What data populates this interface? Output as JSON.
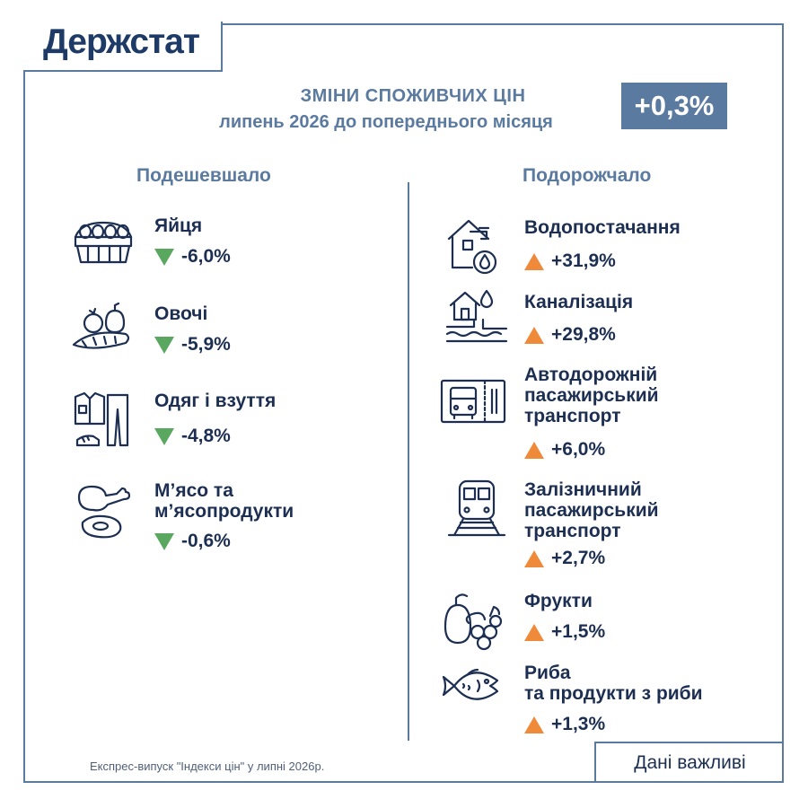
{
  "logo": "Держстат",
  "header": {
    "title": "ЗМІНИ СПОЖИВЧИХ ЦІН",
    "subtitle": "липень 2026 до попереднього місяця",
    "total_change": "+0,3%"
  },
  "columns": {
    "cheaper": "Подешевшало",
    "pricier": "Подорожчало"
  },
  "cheaper_items": [
    {
      "icon": "egg-carton-icon",
      "name": "Яйця",
      "value": "-6,0%"
    },
    {
      "icon": "vegetables-icon",
      "name": "Овочі",
      "value": "-5,9%"
    },
    {
      "icon": "clothes-shoes-icon",
      "name": "Одяг і взуття",
      "value": "-4,8%"
    },
    {
      "icon": "meat-icon",
      "name_line1": "М’ясо та",
      "name_line2": "м’ясопродукти",
      "value": "-0,6%"
    }
  ],
  "pricier_items": [
    {
      "icon": "water-supply-icon",
      "name": "Водопостачання",
      "value": "+31,9%"
    },
    {
      "icon": "sewerage-icon",
      "name": "Каналізація",
      "value": "+29,8%"
    },
    {
      "icon": "bus-ticket-icon",
      "name_line1": "Автодорожній",
      "name_line2": "пасажирський",
      "name_line3": "транспорт",
      "value": "+6,0%"
    },
    {
      "icon": "train-icon",
      "name_line1": "Залізничний",
      "name_line2": "пасажирський",
      "name_line3": "транспорт",
      "value": "+2,7%"
    },
    {
      "icon": "fruits-icon",
      "name": "Фрукти",
      "value": "+1,5%"
    },
    {
      "icon": "fish-icon",
      "name_line1": "Риба",
      "name_line2": "та продукти з риби",
      "value": "+1,3%"
    }
  ],
  "colors": {
    "accent": "#5b7aa0",
    "dark": "#1c2f52",
    "down": "#5aa860",
    "up": "#ef8a3a"
  },
  "footer": {
    "source": "Експрес-випуск \"Індекси цін\" у липні 2026р.",
    "tagline": "Дані важливі"
  }
}
